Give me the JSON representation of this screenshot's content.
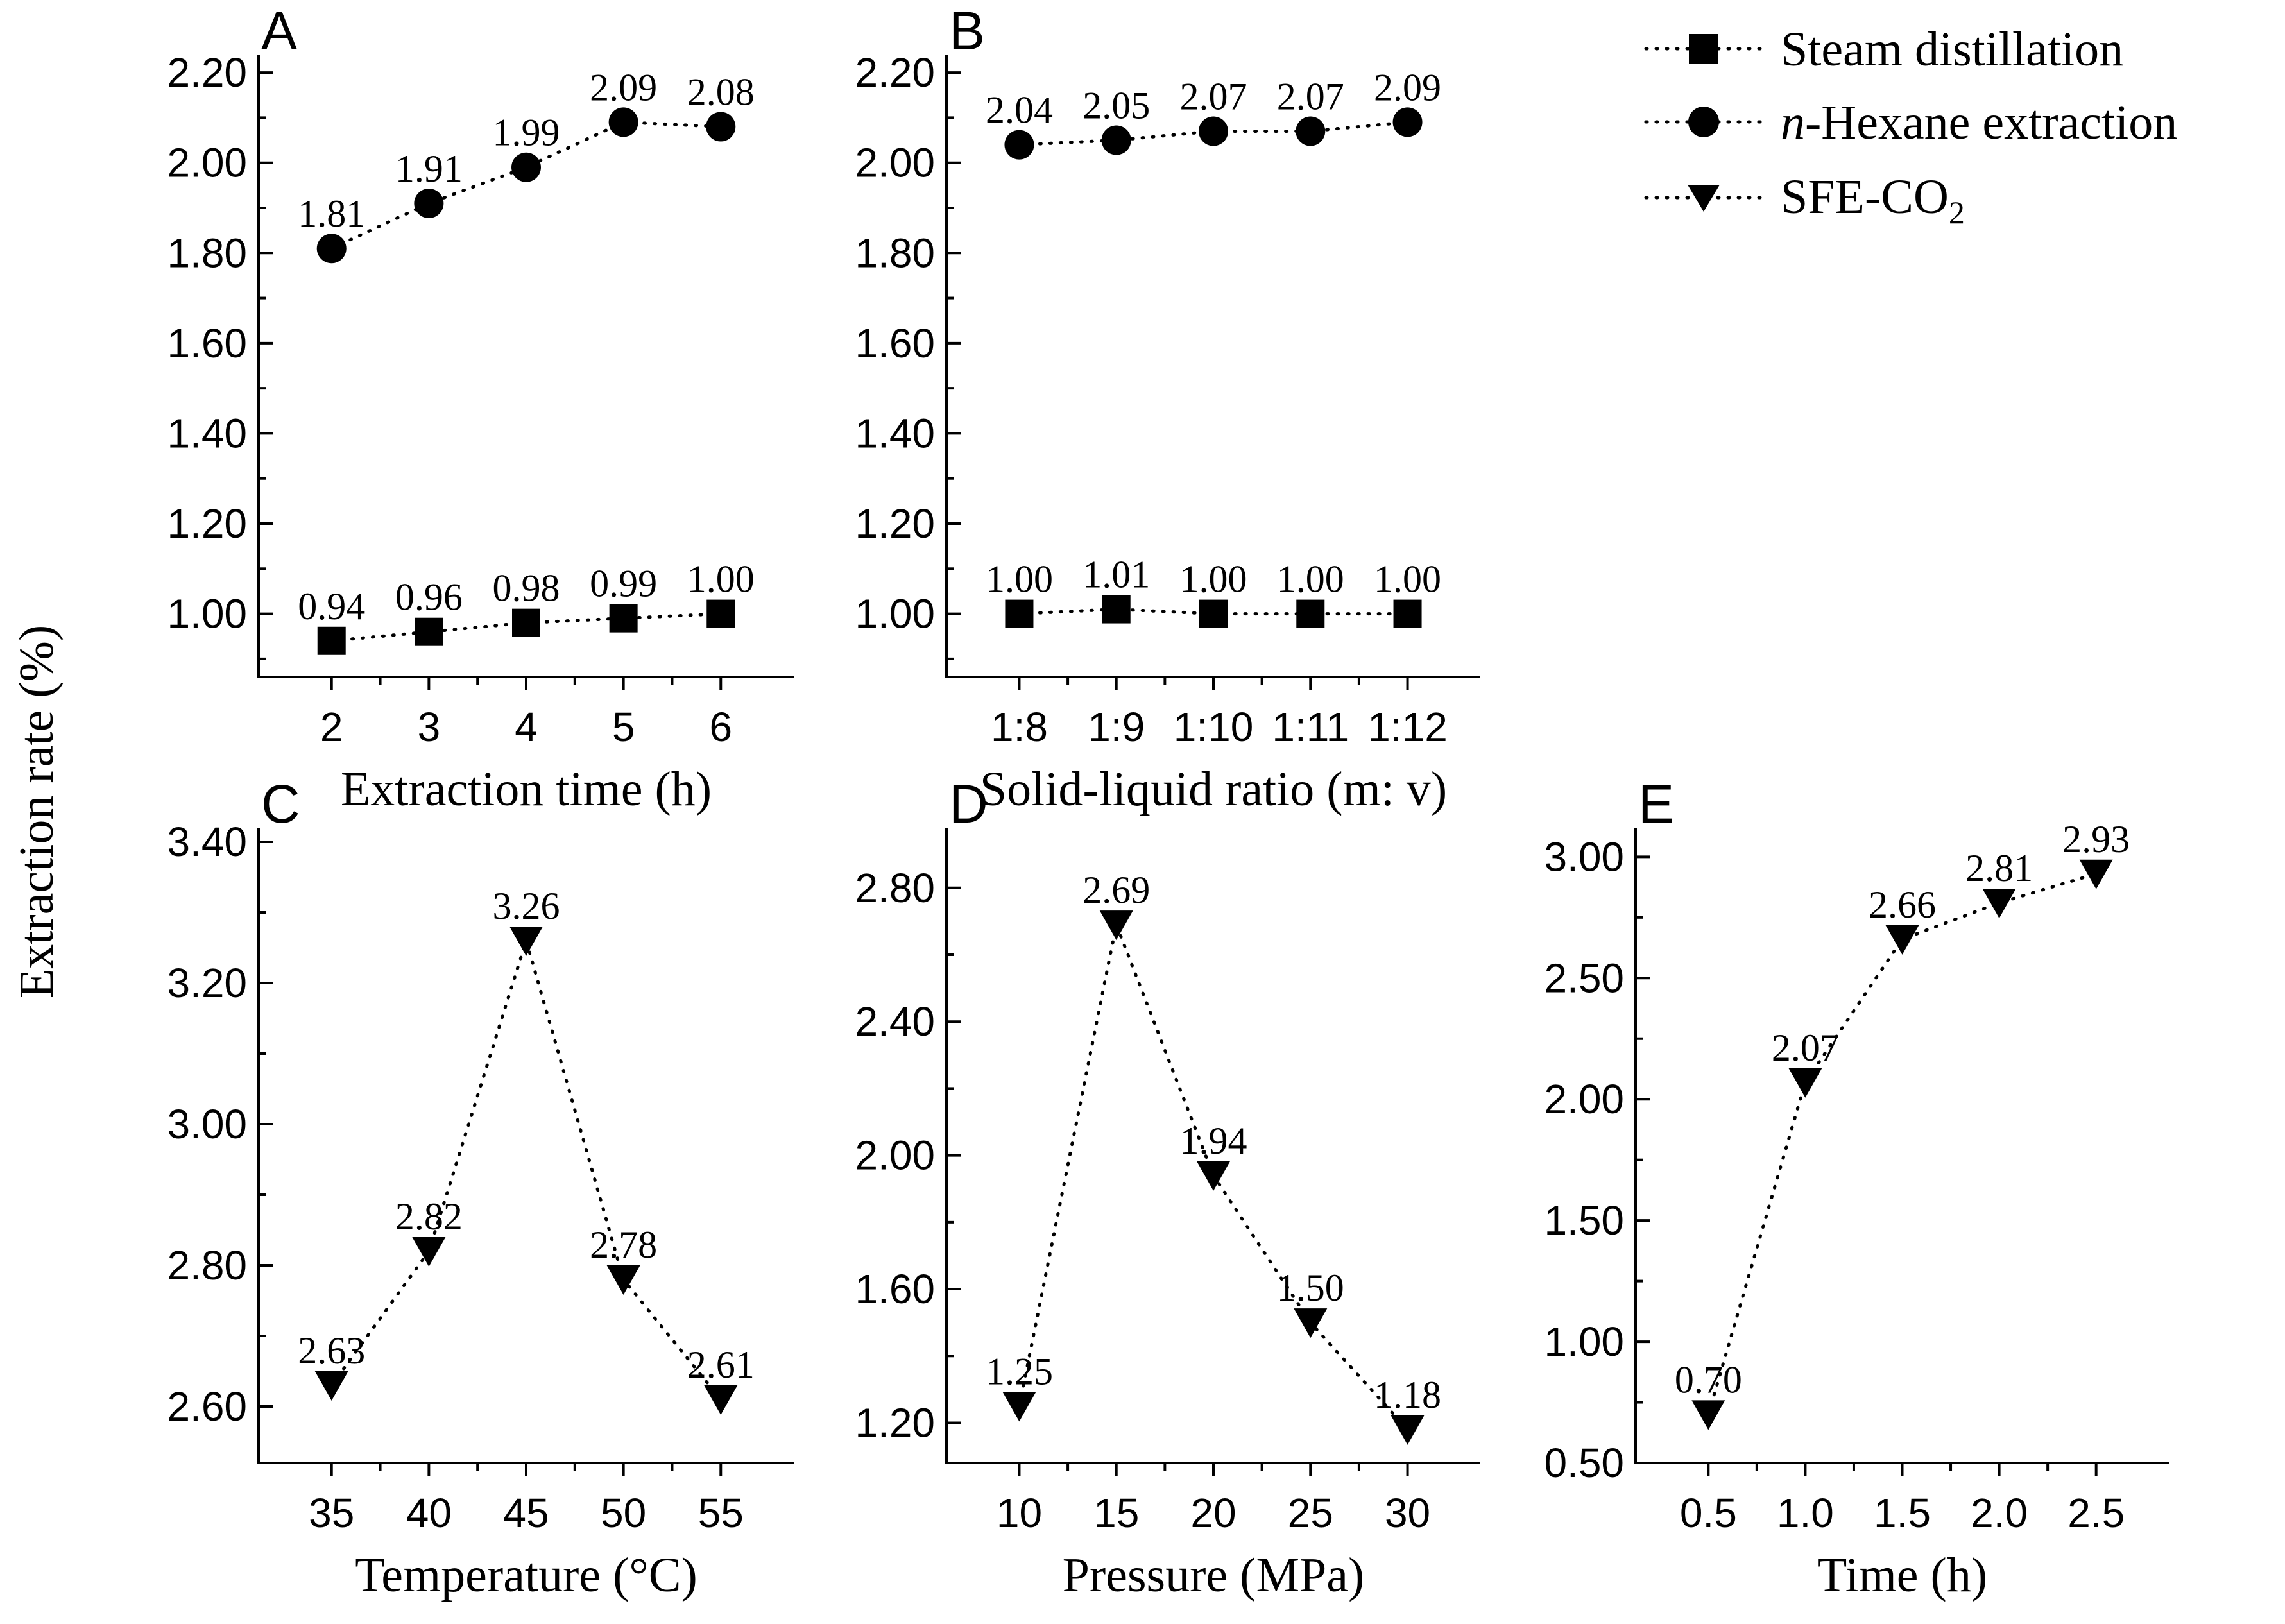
{
  "y_axis_label": "Extraction rate (%)",
  "legend": [
    {
      "label": "Steam distillation",
      "marker": "square"
    },
    {
      "label_italic": "n",
      "label": "-Hexane extraction",
      "marker": "circle"
    },
    {
      "label": "SFE-CO",
      "label_sub": "2",
      "marker": "triangle-down"
    }
  ],
  "chart_data": [
    {
      "panel": "A",
      "type": "line",
      "xlabel": "Extraction time (h)",
      "categories": [
        "2",
        "3",
        "4",
        "5",
        "6"
      ],
      "ylim": [
        0.86,
        2.24
      ],
      "yticks": [
        1.0,
        1.2,
        1.4,
        1.6,
        1.8,
        2.0,
        2.2
      ],
      "ytick_labels": [
        "1.00",
        "1.20",
        "1.40",
        "1.60",
        "1.80",
        "2.00",
        "2.20"
      ],
      "series": [
        {
          "name": "Steam distillation",
          "marker": "square",
          "values": [
            0.94,
            0.96,
            0.98,
            0.99,
            1.0
          ],
          "labels": [
            "0.94",
            "0.96",
            "0.98",
            "0.99",
            "1.00"
          ]
        },
        {
          "name": "n-Hexane extraction",
          "marker": "circle",
          "values": [
            1.81,
            1.91,
            1.99,
            2.09,
            2.08
          ],
          "labels": [
            "1.81",
            "1.91",
            "1.99",
            "2.09",
            "2.08"
          ]
        }
      ]
    },
    {
      "panel": "B",
      "type": "line",
      "xlabel": "Solid-liquid ratio (m: v)",
      "categories": [
        "1:8",
        "1:9",
        "1:10",
        "1:11",
        "1:12"
      ],
      "ylim": [
        0.86,
        2.24
      ],
      "yticks": [
        1.0,
        1.2,
        1.4,
        1.6,
        1.8,
        2.0,
        2.2
      ],
      "ytick_labels": [
        "1.00",
        "1.20",
        "1.40",
        "1.60",
        "1.80",
        "2.00",
        "2.20"
      ],
      "series": [
        {
          "name": "Steam distillation",
          "marker": "square",
          "values": [
            1.0,
            1.01,
            1.0,
            1.0,
            1.0
          ],
          "labels": [
            "1.00",
            "1.01",
            "1.00",
            "1.00",
            "1.00"
          ]
        },
        {
          "name": "n-Hexane extraction",
          "marker": "circle",
          "values": [
            2.04,
            2.05,
            2.07,
            2.07,
            2.09
          ],
          "labels": [
            "2.04",
            "2.05",
            "2.07",
            "2.07",
            "2.09"
          ]
        }
      ]
    },
    {
      "panel": "C",
      "type": "line",
      "xlabel": "Temperature (°C)",
      "categories": [
        "35",
        "40",
        "45",
        "50",
        "55"
      ],
      "ylim": [
        2.52,
        3.42
      ],
      "yticks": [
        2.6,
        2.8,
        3.0,
        3.2,
        3.4
      ],
      "ytick_labels": [
        "2.60",
        "2.80",
        "3.00",
        "3.20",
        "3.40"
      ],
      "series": [
        {
          "name": "SFE-CO2",
          "marker": "triangle-down",
          "values": [
            2.63,
            2.82,
            3.26,
            2.78,
            2.61
          ],
          "labels": [
            "2.63",
            "2.82",
            "3.26",
            "2.78",
            "2.61"
          ]
        }
      ]
    },
    {
      "panel": "D",
      "type": "line",
      "xlabel": "Pressure (MPa)",
      "categories": [
        "10",
        "15",
        "20",
        "25",
        "30"
      ],
      "ylim": [
        1.08,
        2.98
      ],
      "yticks": [
        1.2,
        1.6,
        2.0,
        2.4,
        2.8
      ],
      "ytick_labels": [
        "1.20",
        "1.60",
        "2.00",
        "2.40",
        "2.80"
      ],
      "series": [
        {
          "name": "SFE-CO2",
          "marker": "triangle-down",
          "values": [
            1.25,
            2.69,
            1.94,
            1.5,
            1.18
          ],
          "labels": [
            "1.25",
            "2.69",
            "1.94",
            "1.50",
            "1.18"
          ]
        }
      ]
    },
    {
      "panel": "E",
      "type": "line",
      "xlabel": "Time (h)",
      "categories": [
        "0.5",
        "1.0",
        "1.5",
        "2.0",
        "2.5"
      ],
      "ylim": [
        0.5,
        3.12
      ],
      "yticks": [
        0.5,
        1.0,
        1.5,
        2.0,
        2.5,
        3.0
      ],
      "ytick_labels": [
        "0.50",
        "1.00",
        "1.50",
        "2.00",
        "2.50",
        "3.00"
      ],
      "series": [
        {
          "name": "SFE-CO2",
          "marker": "triangle-down",
          "values": [
            0.7,
            2.07,
            2.66,
            2.81,
            2.93
          ],
          "labels": [
            "0.70",
            "2.07",
            "2.66",
            "2.81",
            "2.93"
          ]
        }
      ]
    }
  ]
}
